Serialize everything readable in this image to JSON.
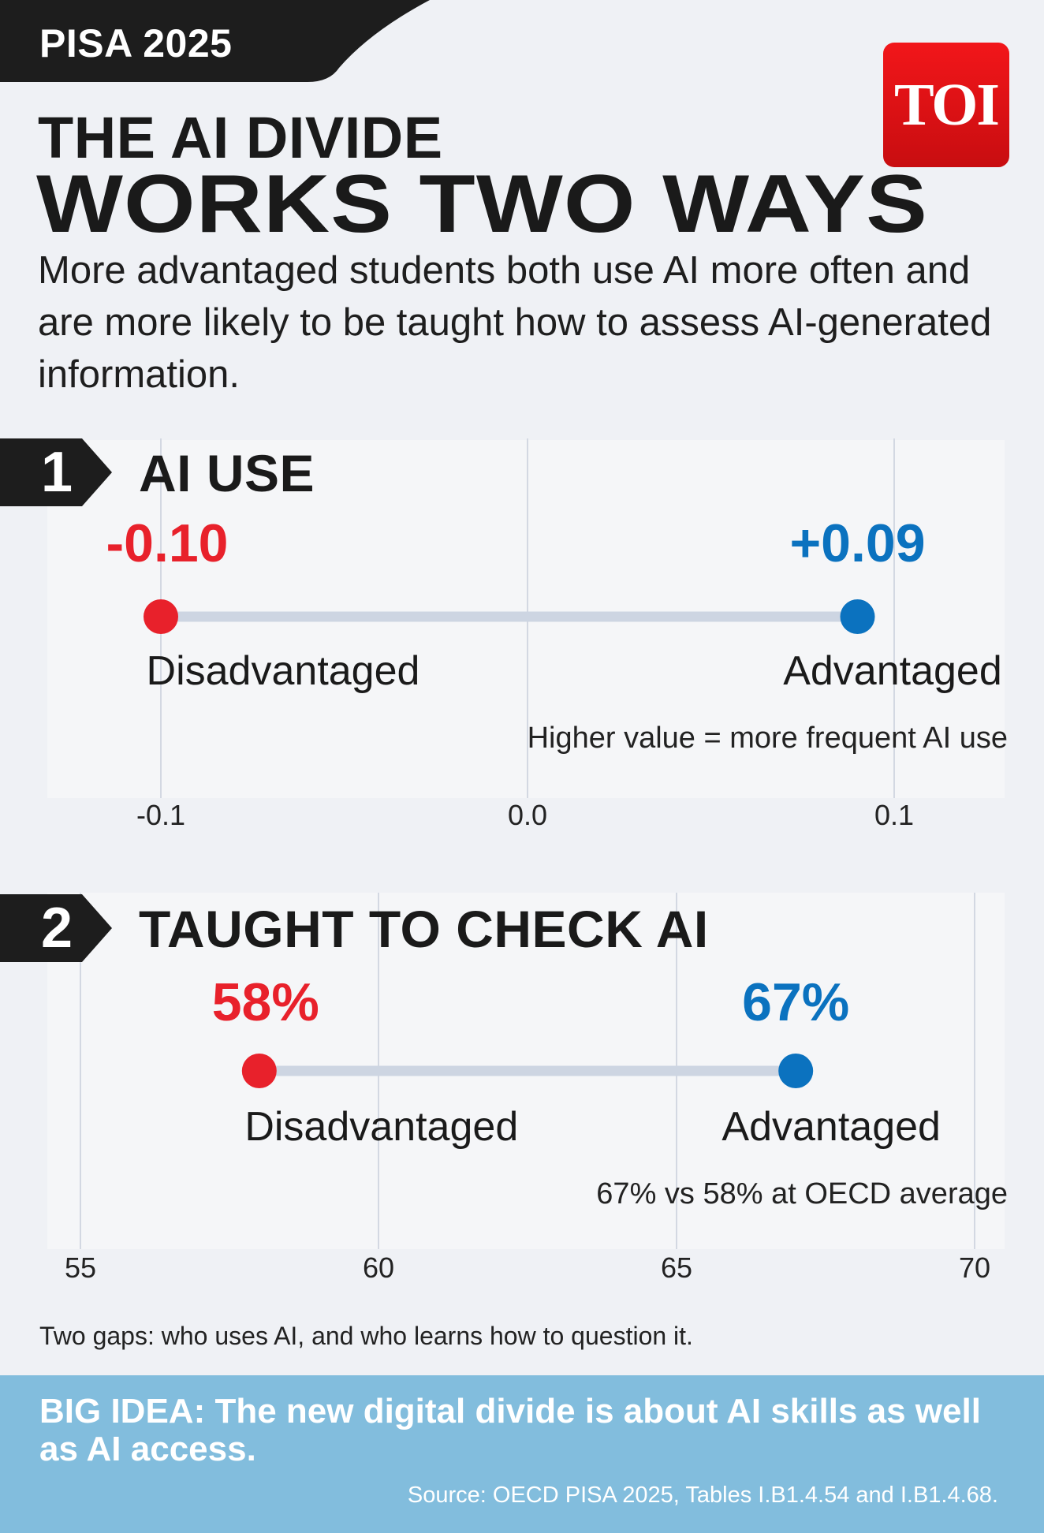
{
  "header": {
    "tag": "PISA 2025",
    "logo": "TOI",
    "title_line1": "THE AI DIVIDE",
    "title_line2": "WORKS TWO WAYS",
    "subtitle": "More advantaged students both use AI more often and are more likely to be taught how to assess AI-generated information."
  },
  "colors": {
    "disadvantaged": "#e8212b",
    "advantaged": "#0b72bf",
    "bar": "#cdd5e2",
    "grid": "#d3d8e2",
    "band": "#82bddd"
  },
  "sections": [
    {
      "number": "1",
      "title": "AI USE"
    },
    {
      "number": "2",
      "title": "TAUGHT TO CHECK AI"
    }
  ],
  "chart_data": [
    {
      "type": "dumbbell",
      "title": "AI USE",
      "xlim": [
        -0.13,
        0.13
      ],
      "ticks": [
        -0.1,
        0.0,
        0.1
      ],
      "tick_labels": [
        "-0.1",
        "0.0",
        "0.1"
      ],
      "points": [
        {
          "group": "Disadvantaged",
          "value": -0.1,
          "label": "-0.10"
        },
        {
          "group": "Advantaged",
          "value": 0.09,
          "label": "+0.09"
        }
      ],
      "note": "Higher value = more frequent AI use"
    },
    {
      "type": "dumbbell",
      "title": "TAUGHT TO CHECK AI",
      "xlim": [
        55,
        70
      ],
      "ticks": [
        55,
        60,
        65,
        70
      ],
      "tick_labels": [
        "55",
        "60",
        "65",
        "70"
      ],
      "points": [
        {
          "group": "Disadvantaged",
          "value": 58,
          "label": "58%"
        },
        {
          "group": "Advantaged",
          "value": 67,
          "label": "67%"
        }
      ],
      "note": "67% vs 58% at OECD average"
    }
  ],
  "footer": {
    "gaps_note": "Two gaps: who uses AI, and who learns how to question it.",
    "big_idea": "BIG IDEA: The new digital divide is about AI skills as well as AI access.",
    "source": "Source: OECD PISA 2025, Tables I.B1.4.54 and I.B1.4.68."
  }
}
